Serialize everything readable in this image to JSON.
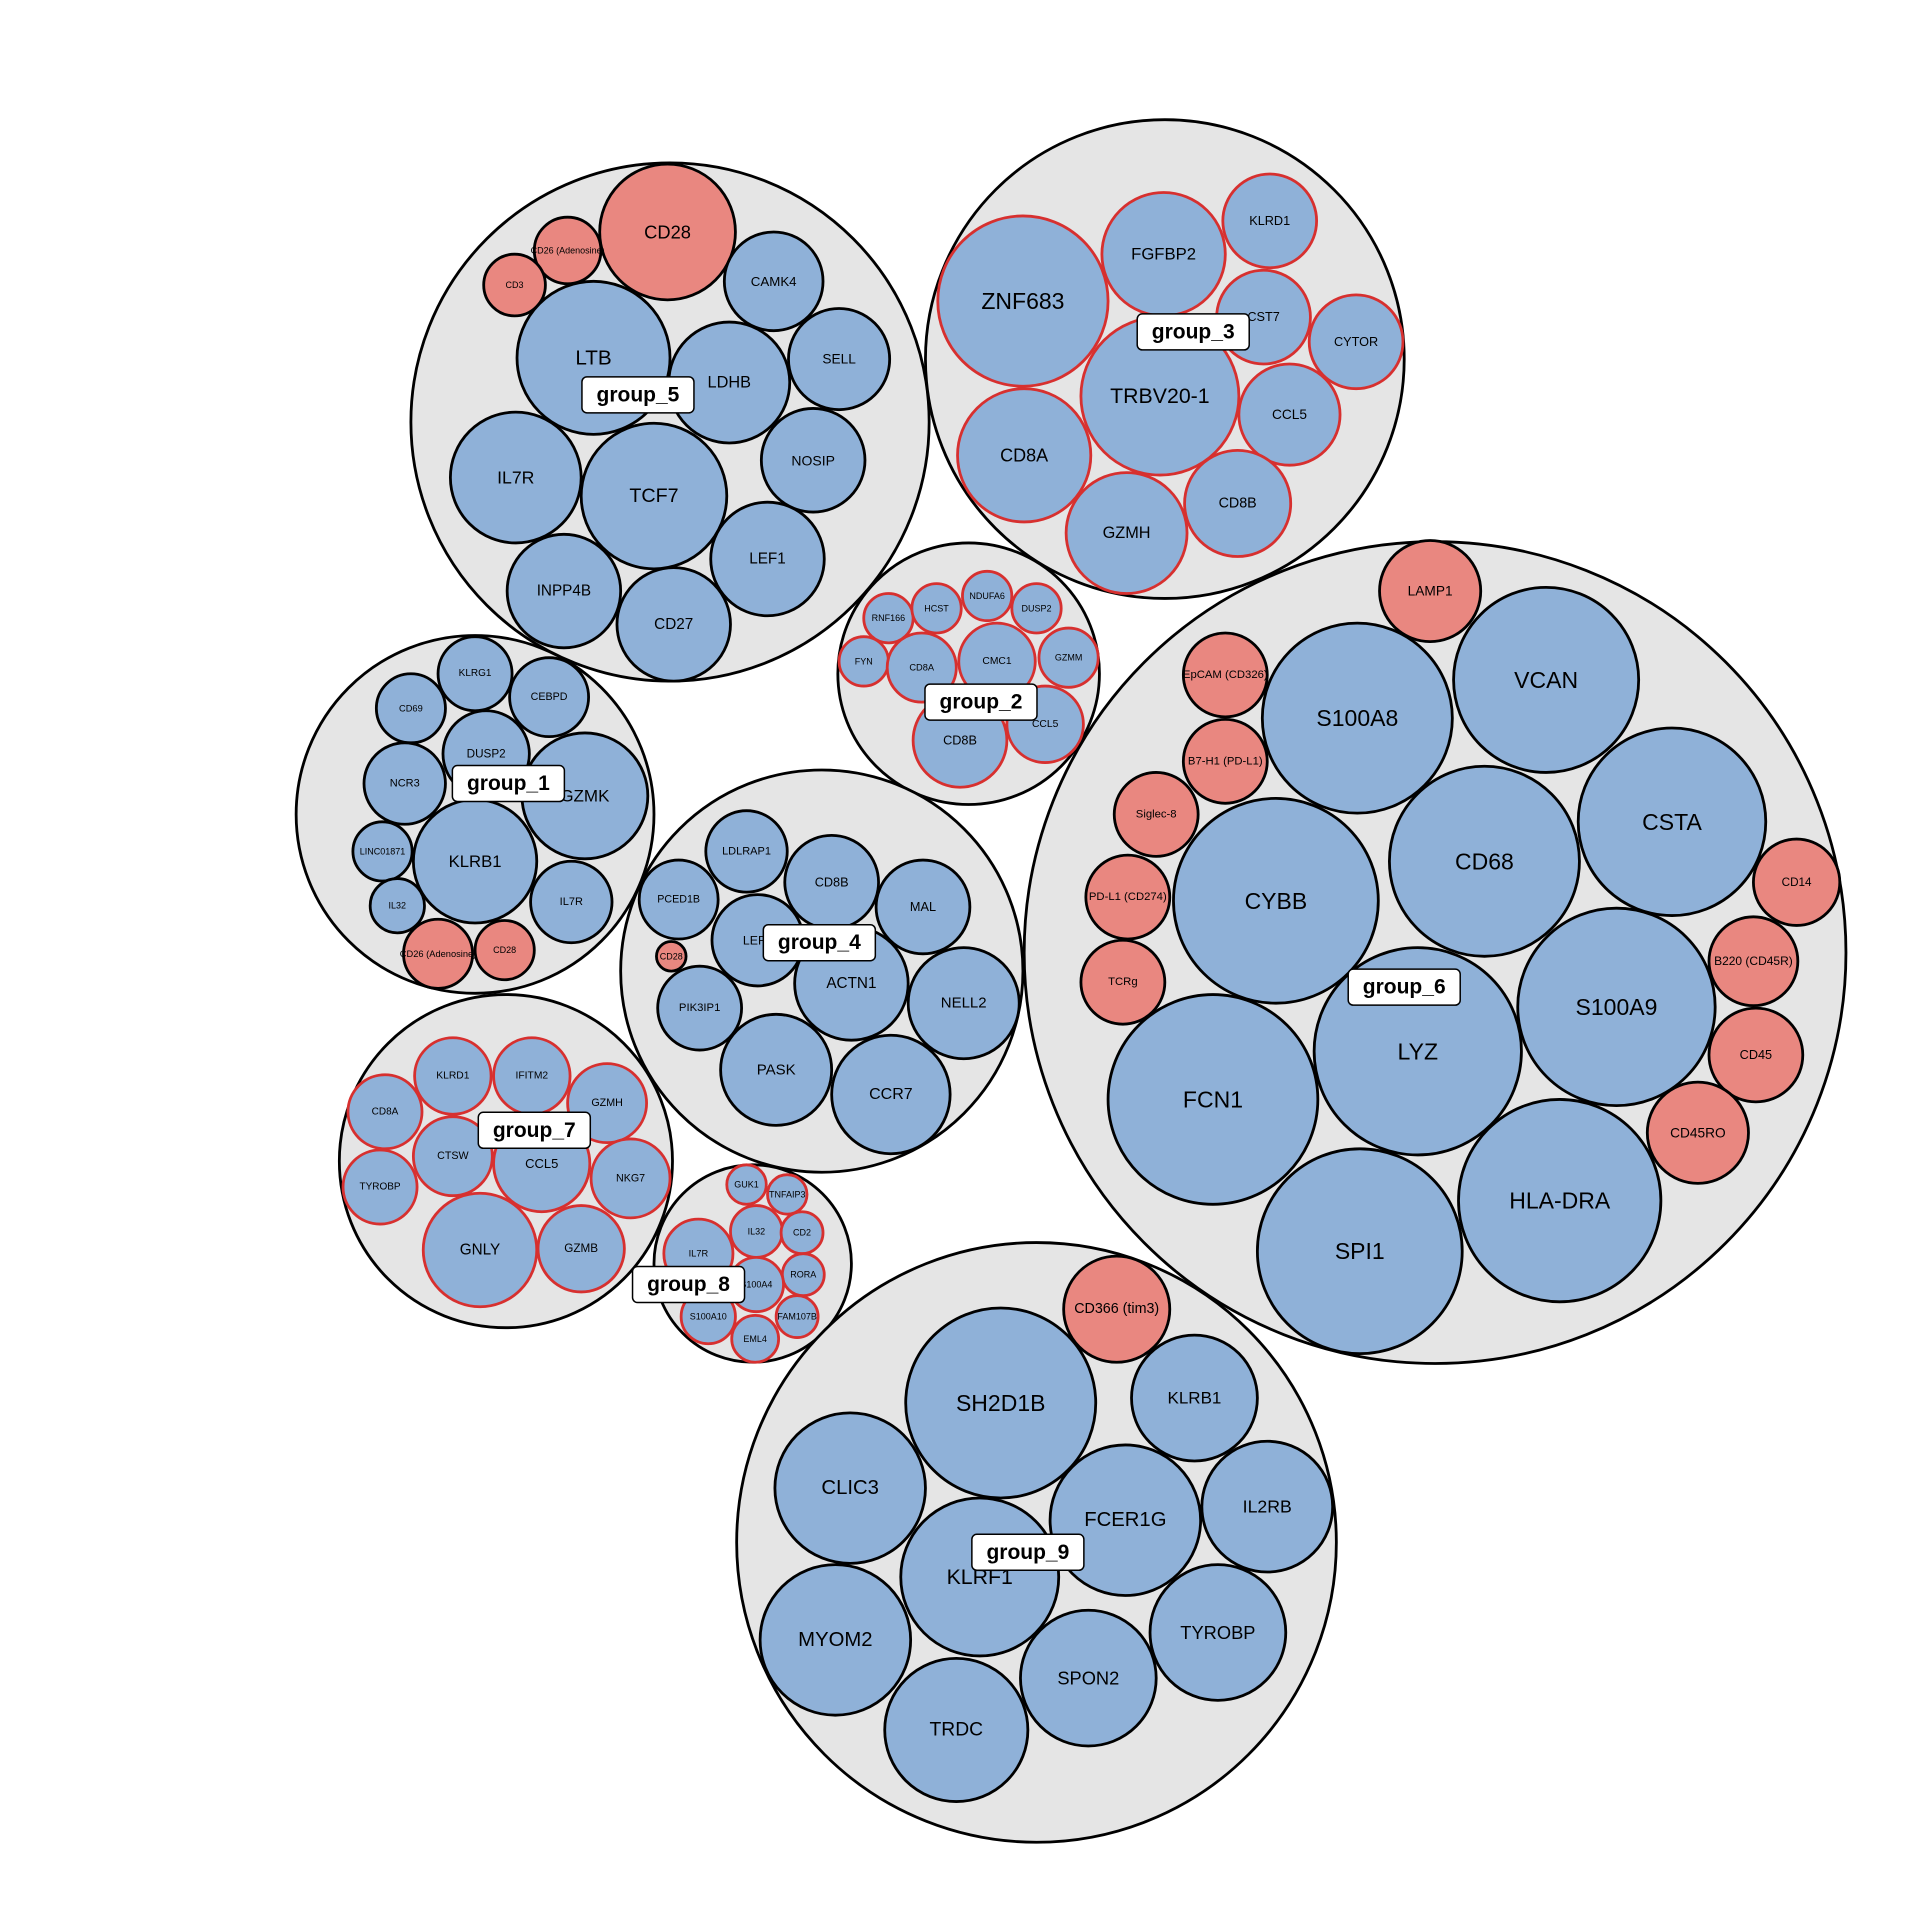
{
  "colors": {
    "blue": "#8fb1d8",
    "red": "#e98780",
    "group_fill": "#e5e5e5",
    "leaf_stroke_default": "#000000",
    "leaf_stroke_highlight": "#d7302f"
  },
  "groups": [
    {
      "id": "group_5",
      "label": "group_5",
      "highlight": false,
      "leaves": [
        {
          "label": "CD28",
          "kind": "red"
        },
        {
          "label": "CD26 (Adenosine)",
          "kind": "red"
        },
        {
          "label": "CD3",
          "kind": "red"
        },
        {
          "label": "CAMK4",
          "kind": "blue"
        },
        {
          "label": "LTB",
          "kind": "blue"
        },
        {
          "label": "LDHB",
          "kind": "blue"
        },
        {
          "label": "SELL",
          "kind": "blue"
        },
        {
          "label": "IL7R",
          "kind": "blue"
        },
        {
          "label": "TCF7",
          "kind": "blue"
        },
        {
          "label": "NOSIP",
          "kind": "blue"
        },
        {
          "label": "LEF1",
          "kind": "blue"
        },
        {
          "label": "INPP4B",
          "kind": "blue"
        },
        {
          "label": "CD27",
          "kind": "blue"
        }
      ]
    },
    {
      "id": "group_3",
      "label": "group_3",
      "highlight": true,
      "leaves": [
        {
          "label": "ZNF683",
          "kind": "blue"
        },
        {
          "label": "FGFBP2",
          "kind": "blue"
        },
        {
          "label": "KLRD1",
          "kind": "blue"
        },
        {
          "label": "CST7",
          "kind": "blue"
        },
        {
          "label": "CYTOR",
          "kind": "blue"
        },
        {
          "label": "TRBV20-1",
          "kind": "blue"
        },
        {
          "label": "CCL5",
          "kind": "blue"
        },
        {
          "label": "CD8A",
          "kind": "blue"
        },
        {
          "label": "CD8B",
          "kind": "blue"
        },
        {
          "label": "GZMH",
          "kind": "blue"
        }
      ]
    },
    {
      "id": "group_2",
      "label": "group_2",
      "highlight": true,
      "leaves": [
        {
          "label": "RNF166",
          "kind": "blue"
        },
        {
          "label": "HCST",
          "kind": "blue"
        },
        {
          "label": "NDUFA6",
          "kind": "blue"
        },
        {
          "label": "DUSP2",
          "kind": "blue"
        },
        {
          "label": "FYN",
          "kind": "blue"
        },
        {
          "label": "CD8A",
          "kind": "blue"
        },
        {
          "label": "CMC1",
          "kind": "blue"
        },
        {
          "label": "GZMM",
          "kind": "blue"
        },
        {
          "label": "CCL5",
          "kind": "blue"
        },
        {
          "label": "CD8B",
          "kind": "blue"
        }
      ]
    },
    {
      "id": "group_1",
      "label": "group_1",
      "highlight": false,
      "leaves": [
        {
          "label": "KLRG1",
          "kind": "blue"
        },
        {
          "label": "CD69",
          "kind": "blue"
        },
        {
          "label": "CEBPD",
          "kind": "blue"
        },
        {
          "label": "DUSP2",
          "kind": "blue"
        },
        {
          "label": "NCR3",
          "kind": "blue"
        },
        {
          "label": "GZMK",
          "kind": "blue"
        },
        {
          "label": "LINC01871",
          "kind": "blue"
        },
        {
          "label": "KLRB1",
          "kind": "blue"
        },
        {
          "label": "IL32",
          "kind": "blue"
        },
        {
          "label": "IL7R",
          "kind": "blue"
        },
        {
          "label": "CD26 (Adenosine)",
          "kind": "red"
        },
        {
          "label": "CD28",
          "kind": "red"
        }
      ]
    },
    {
      "id": "group_4",
      "label": "group_4",
      "highlight": false,
      "leaves": [
        {
          "label": "LDLRAP1",
          "kind": "blue"
        },
        {
          "label": "CD8B",
          "kind": "blue"
        },
        {
          "label": "PCED1B",
          "kind": "blue"
        },
        {
          "label": "MAL",
          "kind": "blue"
        },
        {
          "label": "LEF1",
          "kind": "blue"
        },
        {
          "label": "CD28",
          "kind": "red"
        },
        {
          "label": "ACTN1",
          "kind": "blue"
        },
        {
          "label": "PIK3IP1",
          "kind": "blue"
        },
        {
          "label": "NELL2",
          "kind": "blue"
        },
        {
          "label": "PASK",
          "kind": "blue"
        },
        {
          "label": "CCR7",
          "kind": "blue"
        }
      ]
    },
    {
      "id": "group_6",
      "label": "group_6",
      "highlight": false,
      "leaves": [
        {
          "label": "LAMP1",
          "kind": "red"
        },
        {
          "label": "EpCAM (CD326)",
          "kind": "red"
        },
        {
          "label": "VCAN",
          "kind": "blue"
        },
        {
          "label": "S100A8",
          "kind": "blue"
        },
        {
          "label": "B7-H1 (PD-L1)",
          "kind": "red"
        },
        {
          "label": "Siglec-8",
          "kind": "red"
        },
        {
          "label": "CSTA",
          "kind": "blue"
        },
        {
          "label": "CD68",
          "kind": "blue"
        },
        {
          "label": "PD-L1 (CD274)",
          "kind": "red"
        },
        {
          "label": "CYBB",
          "kind": "blue"
        },
        {
          "label": "CD14",
          "kind": "red"
        },
        {
          "label": "B220 (CD45R)",
          "kind": "red"
        },
        {
          "label": "TCRg",
          "kind": "red"
        },
        {
          "label": "S100A9",
          "kind": "blue"
        },
        {
          "label": "LYZ",
          "kind": "blue"
        },
        {
          "label": "CD45",
          "kind": "red"
        },
        {
          "label": "FCN1",
          "kind": "blue"
        },
        {
          "label": "CD45RO",
          "kind": "red"
        },
        {
          "label": "HLA-DRA",
          "kind": "blue"
        },
        {
          "label": "SPI1",
          "kind": "blue"
        }
      ]
    },
    {
      "id": "group_7",
      "label": "group_7",
      "highlight": true,
      "leaves": [
        {
          "label": "KLRD1",
          "kind": "blue"
        },
        {
          "label": "IFITM2",
          "kind": "blue"
        },
        {
          "label": "CD8A",
          "kind": "blue"
        },
        {
          "label": "GZMH",
          "kind": "blue"
        },
        {
          "label": "CTSW",
          "kind": "blue"
        },
        {
          "label": "CCL5",
          "kind": "blue"
        },
        {
          "label": "NKG7",
          "kind": "blue"
        },
        {
          "label": "TYROBP",
          "kind": "blue"
        },
        {
          "label": "GNLY",
          "kind": "blue"
        },
        {
          "label": "GZMB",
          "kind": "blue"
        }
      ]
    },
    {
      "id": "group_8",
      "label": "group_8",
      "highlight": true,
      "leaves": [
        {
          "label": "GUK1",
          "kind": "blue"
        },
        {
          "label": "TNFAIP3",
          "kind": "blue"
        },
        {
          "label": "IL32",
          "kind": "blue"
        },
        {
          "label": "CD2",
          "kind": "blue"
        },
        {
          "label": "IL7R",
          "kind": "blue"
        },
        {
          "label": "RORA",
          "kind": "blue"
        },
        {
          "label": "S100A4",
          "kind": "blue"
        },
        {
          "label": "FAM107B",
          "kind": "blue"
        },
        {
          "label": "S100A10",
          "kind": "blue"
        },
        {
          "label": "EML4",
          "kind": "blue"
        }
      ]
    },
    {
      "id": "group_9",
      "label": "group_9",
      "highlight": false,
      "leaves": [
        {
          "label": "CD366 (tim3)",
          "kind": "red"
        },
        {
          "label": "SH2D1B",
          "kind": "blue"
        },
        {
          "label": "KLRB1",
          "kind": "blue"
        },
        {
          "label": "CLIC3",
          "kind": "blue"
        },
        {
          "label": "FCER1G",
          "kind": "blue"
        },
        {
          "label": "IL2RB",
          "kind": "blue"
        },
        {
          "label": "KLRF1",
          "kind": "blue"
        },
        {
          "label": "MYOM2",
          "kind": "blue"
        },
        {
          "label": "TYROBP",
          "kind": "blue"
        },
        {
          "label": "SPON2",
          "kind": "blue"
        },
        {
          "label": "TRDC",
          "kind": "blue"
        }
      ]
    }
  ]
}
